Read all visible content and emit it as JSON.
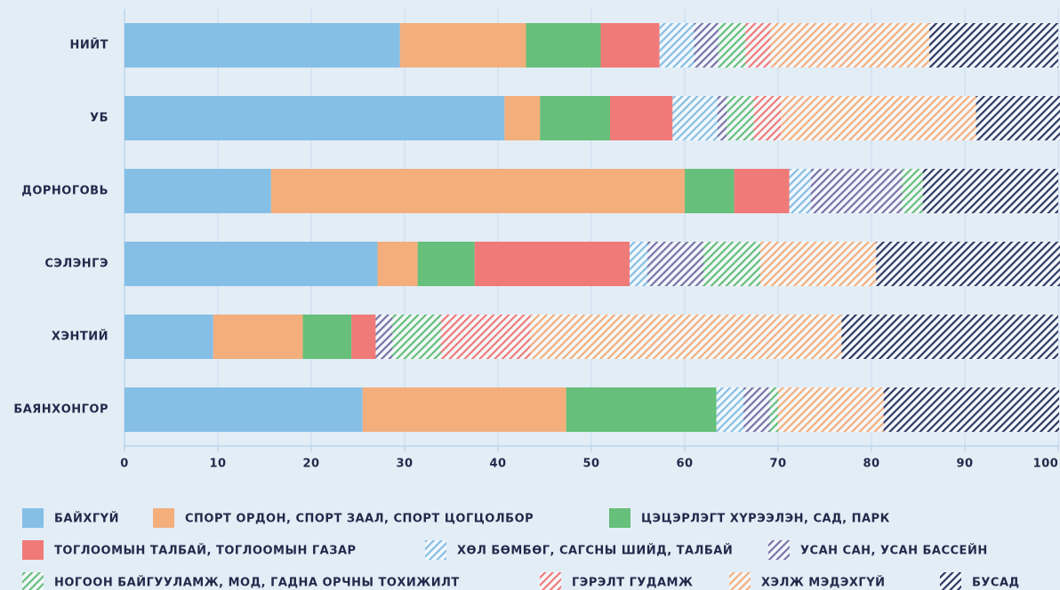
{
  "chart_data": {
    "type": "stacked-barh",
    "categories": [
      "НИЙТ",
      "УБ",
      "ДОРНОГОВЬ",
      "СЭЛЭНГЭ",
      "ХЭНТИЙ",
      "БАЯНХОНГОР"
    ],
    "series": [
      {
        "name": "БАЙХГҮЙ",
        "color": "#85bfe6",
        "pattern": "solid",
        "values": [
          29.5,
          40.7,
          15.7,
          27.1,
          9.5,
          25.5
        ]
      },
      {
        "name": "СПОРТ ОРДОН, СПОРТ ЗААЛ, СПОРТ ЦОГЦОЛБОР",
        "color": "#f3ae7c",
        "pattern": "solid",
        "values": [
          13.5,
          3.8,
          44.3,
          4.3,
          9.6,
          21.8
        ]
      },
      {
        "name": "ЦЭЦЭРЛЭГТ ХҮРЭЭЛЭН, САД, ПАРК",
        "color": "#66bf7a",
        "pattern": "solid",
        "values": [
          8.0,
          7.5,
          5.3,
          6.1,
          5.2,
          16.1
        ]
      },
      {
        "name": "ТОГЛООМЫН ТАЛБАЙ, ТОГЛООМЫН ГАЗАР",
        "color": "#f07a78",
        "pattern": "solid",
        "values": [
          6.3,
          6.7,
          5.9,
          16.6,
          2.6,
          0
        ]
      },
      {
        "name": "ХӨЛ БӨМБӨГ, САГСНЫ ШИЙД, ТАЛБАЙ",
        "color": "#85bfe6",
        "pattern": "hatch",
        "values": [
          3.7,
          4.8,
          2.3,
          1.9,
          0,
          2.9
        ]
      },
      {
        "name": "УСАН САН, УСАН БАССЕЙН",
        "color": "#7a72a8",
        "pattern": "hatch",
        "values": [
          2.6,
          1.0,
          9.8,
          6.0,
          1.8,
          2.8
        ]
      },
      {
        "name": "НОГООН БАЙГУУЛАМЖ, МОД, ГАДНА ОРЧНЫ ТОХИЖИЛТ",
        "color": "#66bf7a",
        "pattern": "hatch",
        "values": [
          2.9,
          2.9,
          2.2,
          6.1,
          5.2,
          0.9
        ]
      },
      {
        "name": "ГЭРЭЛТ ГУДАМЖ",
        "color": "#f07a78",
        "pattern": "hatch",
        "values": [
          2.7,
          2.9,
          0,
          0,
          9.6,
          0
        ]
      },
      {
        "name": "ХЭЛЖ МЭДЭХГҮЙ",
        "color": "#f3ae7c",
        "pattern": "hatch",
        "values": [
          17.0,
          20.9,
          0,
          12.4,
          33.3,
          11.3
        ]
      },
      {
        "name": "БУСАД",
        "color": "#2f3a66",
        "pattern": "hatch",
        "values": [
          13.8,
          9.2,
          14.5,
          19.7,
          23.2,
          18.8
        ]
      }
    ],
    "xlim": [
      0,
      100
    ],
    "xticks": [
      0,
      10,
      20,
      30,
      40,
      50,
      60,
      70,
      80,
      90,
      100
    ],
    "grid": true
  }
}
